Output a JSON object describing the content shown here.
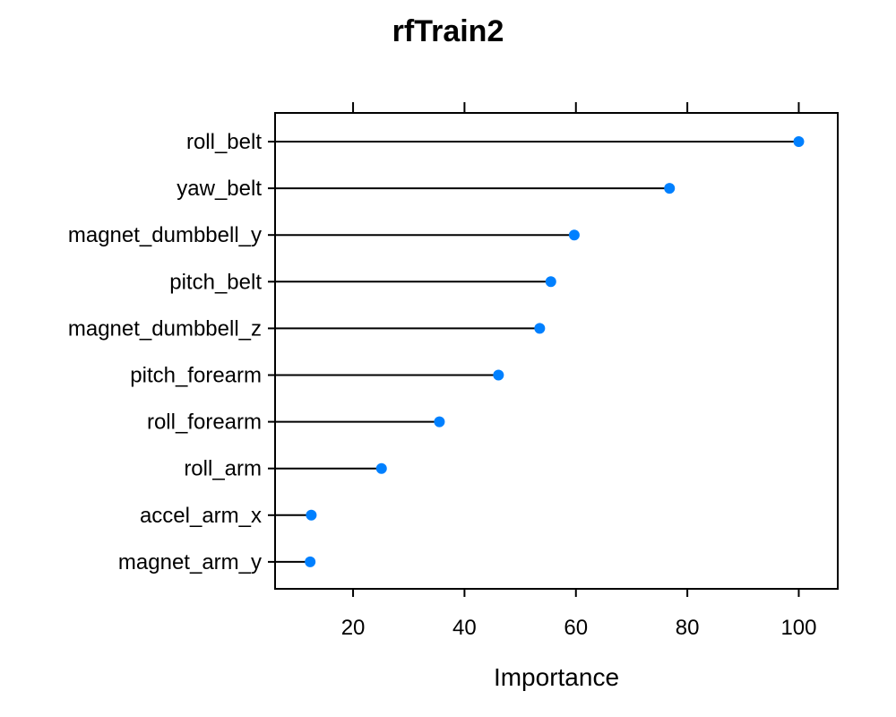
{
  "chart_data": {
    "type": "dotplot",
    "title": "rfTrain2",
    "xlabel": "Importance",
    "ylabel": "",
    "xlim": [
      6,
      107
    ],
    "xticks": [
      20,
      40,
      60,
      80,
      100
    ],
    "point_color": "#0080ff",
    "categories": [
      "roll_belt",
      "yaw_belt",
      "magnet_dumbbell_y",
      "pitch_belt",
      "magnet_dumbbell_z",
      "pitch_forearm",
      "roll_forearm",
      "roll_arm",
      "accel_arm_x",
      "magnet_arm_y"
    ],
    "values": [
      100,
      76.8,
      59.7,
      55.5,
      53.5,
      46.1,
      35.5,
      25.1,
      12.5,
      12.3
    ]
  }
}
